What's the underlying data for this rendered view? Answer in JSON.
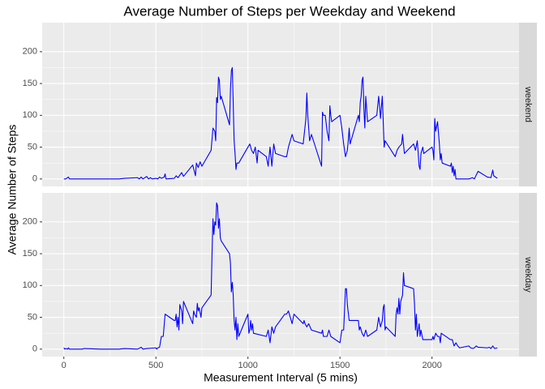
{
  "title": "Average Number of Steps per Weekday and Weekend",
  "x_label": "Measurement Interval (5 mins)",
  "y_label": "Average Number of Steps",
  "chart_data": [
    {
      "type": "line",
      "facet": "weekend",
      "x": [
        0,
        10,
        25,
        30,
        100,
        200,
        300,
        330,
        400,
        410,
        420,
        430,
        450,
        460,
        470,
        480,
        500,
        510,
        520,
        530,
        545,
        550,
        555,
        600,
        610,
        620,
        640,
        650,
        700,
        715,
        720,
        730,
        740,
        750,
        800,
        810,
        820,
        825,
        830,
        835,
        840,
        845,
        850,
        855,
        900,
        905,
        910,
        915,
        920,
        925,
        930,
        935,
        940,
        950,
        1000,
        1010,
        1020,
        1030,
        1040,
        1050,
        1055,
        1100,
        1110,
        1120,
        1125,
        1130,
        1140,
        1150,
        1200,
        1210,
        1220,
        1230,
        1240,
        1250,
        1300,
        1315,
        1320,
        1325,
        1335,
        1345,
        1400,
        1405,
        1410,
        1420,
        1430,
        1440,
        1445,
        1450,
        1455,
        1500,
        1510,
        1520,
        1530,
        1540,
        1545,
        1550,
        1555,
        1600,
        1605,
        1610,
        1615,
        1620,
        1625,
        1630,
        1635,
        1640,
        1650,
        1700,
        1710,
        1715,
        1720,
        1730,
        1740,
        1745,
        1800,
        1810,
        1820,
        1835,
        1840,
        1845,
        1850,
        1900,
        1910,
        1920,
        1930,
        1935,
        1940,
        1950,
        1955,
        2000,
        2005,
        2010,
        2015,
        2020,
        2030,
        2040,
        2045,
        2050,
        2055,
        2100,
        2105,
        2110,
        2115,
        2120,
        2125,
        2130,
        2200,
        2220,
        2230,
        2250,
        2300,
        2320,
        2330,
        2335,
        2355
      ],
      "series": [
        {
          "color": "#0000ff",
          "values": [
            0,
            0,
            3,
            0,
            0,
            0,
            0,
            1,
            2,
            0,
            3,
            0,
            4,
            0,
            2,
            0,
            1,
            0,
            3,
            1,
            3,
            8,
            0,
            1,
            5,
            2,
            10,
            4,
            22,
            5,
            25,
            18,
            27,
            20,
            45,
            80,
            75,
            60,
            128,
            120,
            160,
            155,
            125,
            130,
            85,
            140,
            170,
            175,
            120,
            60,
            40,
            15,
            25,
            25,
            50,
            55,
            45,
            40,
            50,
            25,
            45,
            35,
            20,
            50,
            35,
            20,
            55,
            40,
            35,
            35,
            50,
            60,
            70,
            60,
            55,
            95,
            135,
            100,
            60,
            70,
            20,
            105,
            100,
            100,
            75,
            60,
            115,
            100,
            90,
            100,
            80,
            55,
            35,
            45,
            60,
            80,
            55,
            100,
            90,
            120,
            130,
            155,
            160,
            110,
            80,
            130,
            90,
            100,
            130,
            115,
            95,
            130,
            50,
            60,
            35,
            45,
            50,
            55,
            70,
            55,
            40,
            55,
            45,
            60,
            20,
            15,
            40,
            50,
            40,
            50,
            45,
            30,
            95,
            75,
            90,
            55,
            30,
            40,
            25,
            20,
            25,
            10,
            20,
            5,
            15,
            0,
            0,
            2,
            0,
            12,
            3,
            2,
            14,
            5,
            1
          ]
        }
      ],
      "xlim": [
        -117.75,
        2472.75
      ],
      "ylim": [
        -11.7,
        245.6
      ],
      "xticks": [
        0,
        500,
        1000,
        1500,
        2000
      ],
      "yticks": [
        0,
        50,
        100,
        150,
        200
      ],
      "grid": true
    },
    {
      "type": "line",
      "facet": "weekday",
      "x": [
        0,
        5,
        10,
        20,
        25,
        30,
        100,
        110,
        200,
        300,
        330,
        400,
        420,
        430,
        450,
        500,
        505,
        510,
        520,
        530,
        540,
        550,
        600,
        605,
        610,
        615,
        620,
        625,
        630,
        640,
        645,
        650,
        700,
        705,
        710,
        720,
        725,
        730,
        735,
        745,
        750,
        800,
        805,
        810,
        815,
        820,
        825,
        830,
        835,
        840,
        845,
        850,
        855,
        900,
        905,
        910,
        915,
        920,
        925,
        930,
        935,
        940,
        945,
        950,
        1000,
        1005,
        1010,
        1015,
        1020,
        1025,
        1030,
        1100,
        1110,
        1120,
        1130,
        1140,
        1150,
        1200,
        1210,
        1220,
        1230,
        1240,
        1250,
        1300,
        1305,
        1310,
        1320,
        1330,
        1345,
        1400,
        1405,
        1410,
        1430,
        1440,
        1450,
        1500,
        1510,
        1520,
        1530,
        1535,
        1540,
        1550,
        1600,
        1605,
        1610,
        1620,
        1630,
        1640,
        1650,
        1700,
        1710,
        1720,
        1730,
        1735,
        1740,
        1745,
        1750,
        1800,
        1805,
        1810,
        1815,
        1820,
        1825,
        1830,
        1840,
        1845,
        1850,
        1900,
        1905,
        1910,
        1915,
        1920,
        1930,
        1935,
        1940,
        1950,
        2000,
        2005,
        2010,
        2020,
        2030,
        2040,
        2045,
        2050,
        2100,
        2110,
        2120,
        2130,
        2140,
        2150,
        2200,
        2210,
        2220,
        2230,
        2240,
        2250,
        2300,
        2310,
        2320,
        2330,
        2340,
        2355
      ],
      "series": [
        {
          "color": "#0000ff",
          "values": [
            2,
            0,
            1,
            0,
            2,
            0,
            0,
            1,
            0,
            0,
            1,
            0,
            3,
            0,
            1,
            2,
            0,
            2,
            3,
            20,
            20,
            55,
            45,
            45,
            55,
            35,
            50,
            30,
            70,
            60,
            40,
            75,
            40,
            60,
            55,
            50,
            72,
            60,
            65,
            50,
            65,
            85,
            150,
            205,
            180,
            200,
            195,
            230,
            225,
            190,
            205,
            175,
            170,
            150,
            135,
            90,
            105,
            85,
            45,
            30,
            50,
            15,
            40,
            20,
            55,
            25,
            30,
            45,
            30,
            40,
            25,
            20,
            30,
            10,
            35,
            25,
            35,
            55,
            55,
            60,
            50,
            40,
            55,
            40,
            45,
            40,
            35,
            40,
            30,
            25,
            30,
            20,
            20,
            30,
            20,
            10,
            30,
            30,
            95,
            95,
            70,
            45,
            45,
            30,
            35,
            25,
            20,
            30,
            20,
            30,
            50,
            35,
            45,
            65,
            70,
            30,
            35,
            20,
            55,
            65,
            55,
            80,
            55,
            75,
            85,
            120,
            100,
            95,
            70,
            30,
            55,
            20,
            40,
            20,
            30,
            15,
            15,
            20,
            15,
            25,
            20,
            20,
            10,
            25,
            15,
            15,
            5,
            10,
            5,
            2,
            5,
            2,
            1,
            2,
            5,
            3,
            2,
            3,
            1,
            5,
            1,
            2
          ]
        }
      ],
      "xlim": [
        -117.75,
        2472.75
      ],
      "ylim": [
        -11.7,
        245.6
      ],
      "xticks": [
        0,
        500,
        1000,
        1500,
        2000
      ],
      "yticks": [
        0,
        50,
        100,
        150,
        200
      ],
      "grid": true
    }
  ]
}
